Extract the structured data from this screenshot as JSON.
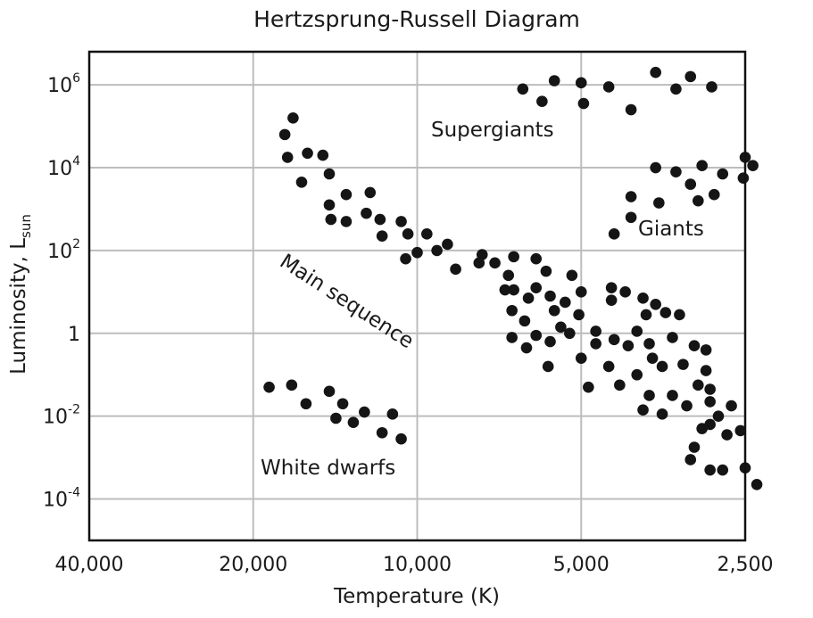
{
  "chart_data": {
    "type": "scatter",
    "title": "Hertzsprung-Russell Diagram",
    "xlabel": "Temperature (K)",
    "ylabel_main": "Luminosity, L",
    "ylabel_sub": "sun",
    "x_scale": "log",
    "x_reversed": true,
    "x_ticks": [
      40000,
      20000,
      10000,
      5000,
      2500
    ],
    "x_tick_labels": [
      "40,000",
      "20,000",
      "10,000",
      "5,000",
      "2,500"
    ],
    "xlim": [
      40000,
      2500
    ],
    "y_scale": "log",
    "ylim_exp": [
      -5,
      6.8
    ],
    "y_ticks": [
      {
        "base": "10",
        "exp": "6",
        "value_exp": 6
      },
      {
        "base": "10",
        "exp": "4",
        "value_exp": 4
      },
      {
        "base": "10",
        "exp": "2",
        "value_exp": 2
      },
      {
        "base": "1",
        "exp": "",
        "value_exp": 0
      },
      {
        "base": "10",
        "exp": "-2",
        "value_exp": -2
      },
      {
        "base": "10",
        "exp": "-4",
        "value_exp": -4
      }
    ],
    "grid": true,
    "annotations": {
      "supergiants": "Supergiants",
      "giants": "Giants",
      "main_sequence": "Main sequence",
      "white_dwarfs": "White dwarfs"
    },
    "series": [
      {
        "name": "Supergiants",
        "points": [
          [
            6400,
            5.9
          ],
          [
            5900,
            5.6
          ],
          [
            5600,
            6.1
          ],
          [
            5000,
            6.05
          ],
          [
            4950,
            5.55
          ],
          [
            4450,
            5.95
          ],
          [
            4050,
            5.4
          ],
          [
            3650,
            6.3
          ],
          [
            3350,
            5.9
          ],
          [
            3150,
            6.2
          ],
          [
            2880,
            5.95
          ]
        ]
      },
      {
        "name": "Giants",
        "points": [
          [
            3650,
            4.0
          ],
          [
            3000,
            4.05
          ],
          [
            2750,
            3.85
          ],
          [
            2500,
            4.25
          ],
          [
            2420,
            4.05
          ],
          [
            3150,
            3.6
          ],
          [
            3350,
            3.9
          ],
          [
            4050,
            3.3
          ],
          [
            2850,
            3.35
          ],
          [
            2520,
            3.75
          ],
          [
            3600,
            3.15
          ],
          [
            3050,
            3.2
          ],
          [
            4050,
            2.8
          ],
          [
            4350,
            2.4
          ]
        ]
      },
      {
        "name": "Main sequence",
        "points": [
          [
            17500,
            4.8
          ],
          [
            16900,
            5.2
          ],
          [
            17300,
            4.25
          ],
          [
            15900,
            4.35
          ],
          [
            16300,
            3.65
          ],
          [
            14900,
            4.3
          ],
          [
            14500,
            3.85
          ],
          [
            14500,
            3.1
          ],
          [
            13500,
            3.35
          ],
          [
            12200,
            3.4
          ],
          [
            14400,
            2.75
          ],
          [
            13500,
            2.7
          ],
          [
            12400,
            2.9
          ],
          [
            11600,
            2.35
          ],
          [
            11700,
            2.75
          ],
          [
            10700,
            2.7
          ],
          [
            10400,
            2.4
          ],
          [
            9600,
            2.4
          ],
          [
            8800,
            2.15
          ],
          [
            9200,
            2.0
          ],
          [
            10500,
            1.8
          ],
          [
            10000,
            1.95
          ],
          [
            7600,
            1.9
          ],
          [
            7700,
            1.7
          ],
          [
            6650,
            1.85
          ],
          [
            7200,
            1.7
          ],
          [
            8500,
            1.55
          ],
          [
            6650,
            1.05
          ],
          [
            6050,
            1.1
          ],
          [
            6800,
            1.4
          ],
          [
            6050,
            1.8
          ],
          [
            5200,
            1.4
          ],
          [
            4400,
            1.1
          ],
          [
            6900,
            1.05
          ],
          [
            5800,
            1.5
          ],
          [
            6250,
            0.85
          ],
          [
            5700,
            0.9
          ],
          [
            5000,
            1.0
          ],
          [
            4150,
            1.0
          ],
          [
            6700,
            0.55
          ],
          [
            6350,
            0.3
          ],
          [
            5600,
            0.55
          ],
          [
            5350,
            0.75
          ],
          [
            5050,
            0.45
          ],
          [
            4400,
            0.8
          ],
          [
            3850,
            0.85
          ],
          [
            3650,
            0.7
          ],
          [
            3800,
            0.45
          ],
          [
            6700,
            -0.1
          ],
          [
            6050,
            -0.05
          ],
          [
            5450,
            0.15
          ],
          [
            4700,
            0.05
          ],
          [
            3300,
            0.45
          ],
          [
            3500,
            0.5
          ],
          [
            6300,
            -0.35
          ],
          [
            5700,
            -0.2
          ],
          [
            5250,
            0.0
          ],
          [
            4700,
            -0.25
          ],
          [
            4350,
            -0.15
          ],
          [
            3950,
            0.05
          ],
          [
            3750,
            -0.25
          ],
          [
            3400,
            -0.1
          ],
          [
            3100,
            -0.3
          ],
          [
            2950,
            -0.4
          ],
          [
            5750,
            -0.8
          ],
          [
            5000,
            -0.6
          ],
          [
            4100,
            -0.3
          ],
          [
            3700,
            -0.6
          ],
          [
            4450,
            -0.8
          ],
          [
            3950,
            -1.0
          ],
          [
            3550,
            -0.8
          ],
          [
            3250,
            -0.75
          ],
          [
            2950,
            -0.9
          ],
          [
            2900,
            -1.35
          ],
          [
            4850,
            -1.3
          ],
          [
            4250,
            -1.25
          ],
          [
            3750,
            -1.5
          ],
          [
            3400,
            -1.5
          ],
          [
            3050,
            -1.25
          ],
          [
            2900,
            -1.65
          ],
          [
            3850,
            -1.85
          ],
          [
            3200,
            -1.75
          ],
          [
            2800,
            -2.0
          ],
          [
            3550,
            -1.95
          ],
          [
            3000,
            -2.3
          ],
          [
            2650,
            -1.75
          ],
          [
            2900,
            -2.2
          ],
          [
            2700,
            -2.45
          ],
          [
            3100,
            -2.75
          ],
          [
            2550,
            -2.35
          ],
          [
            3150,
            -3.05
          ],
          [
            2750,
            -3.3
          ],
          [
            2500,
            -3.25
          ],
          [
            2900,
            -3.3
          ],
          [
            2380,
            -3.65
          ]
        ]
      },
      {
        "name": "White dwarfs",
        "points": [
          [
            18700,
            -1.3
          ],
          [
            17000,
            -1.25
          ],
          [
            16000,
            -1.7
          ],
          [
            14500,
            -1.4
          ],
          [
            13700,
            -1.7
          ],
          [
            14100,
            -2.05
          ],
          [
            12500,
            -1.9
          ],
          [
            13100,
            -2.15
          ],
          [
            11600,
            -2.4
          ],
          [
            11100,
            -1.95
          ],
          [
            10700,
            -2.55
          ]
        ]
      }
    ]
  }
}
